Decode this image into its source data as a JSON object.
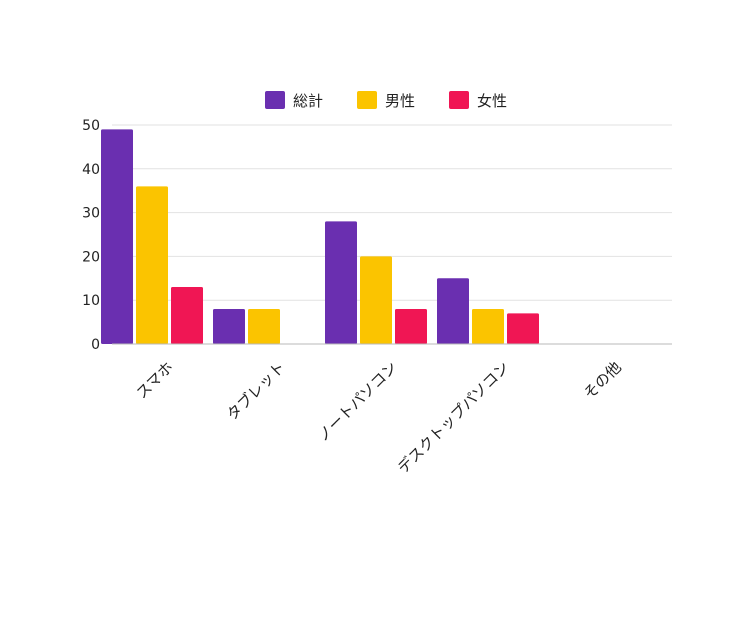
{
  "chart_data": {
    "type": "bar",
    "categories": [
      "スマホ",
      "タブレット",
      "ノートパソコン",
      "デスクトップパソコン",
      "その他"
    ],
    "series": [
      {
        "name": "総計",
        "color": "#6a2fb0",
        "values": [
          49,
          8,
          28,
          15,
          0
        ]
      },
      {
        "name": "男性",
        "color": "#fbc400",
        "values": [
          36,
          8,
          20,
          8,
          0
        ]
      },
      {
        "name": "女性",
        "color": "#f01654",
        "values": [
          13,
          0,
          8,
          7,
          0
        ]
      }
    ],
    "yticks": [
      0,
      10,
      20,
      30,
      40,
      50
    ],
    "ylim": [
      0,
      50
    ],
    "grid": true,
    "legend": "top-center"
  }
}
